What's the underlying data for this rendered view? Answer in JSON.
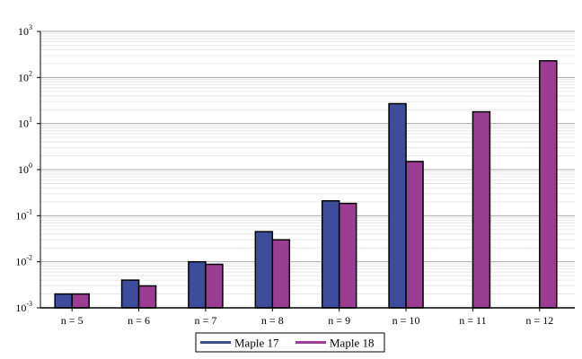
{
  "chart_data": {
    "type": "bar",
    "y_scale": "log",
    "ylim": [
      0.001,
      1000
    ],
    "y_ticks": [
      {
        "value": 0.001,
        "base": "10",
        "exp": "-3"
      },
      {
        "value": 0.01,
        "base": "10",
        "exp": "-2"
      },
      {
        "value": 0.1,
        "base": "10",
        "exp": "-1"
      },
      {
        "value": 1,
        "base": "10",
        "exp": "0"
      },
      {
        "value": 10,
        "base": "10",
        "exp": "1"
      },
      {
        "value": 100,
        "base": "10",
        "exp": "2"
      },
      {
        "value": 1000,
        "base": "10",
        "exp": "3"
      }
    ],
    "grid": true,
    "legend_position": "bottom-center",
    "categories": [
      "n = 5",
      "n = 6",
      "n = 7",
      "n = 8",
      "n = 9",
      "n = 10",
      "n = 11",
      "n = 12"
    ],
    "series": [
      {
        "name": "Maple 17",
        "color": "#3d4d9c",
        "values": [
          0.002,
          0.004,
          0.01,
          0.045,
          0.21,
          27,
          null,
          null
        ]
      },
      {
        "name": "Maple 18",
        "color": "#9b3d92",
        "values": [
          0.002,
          0.003,
          0.0088,
          0.03,
          0.185,
          1.5,
          18,
          230
        ]
      }
    ]
  }
}
